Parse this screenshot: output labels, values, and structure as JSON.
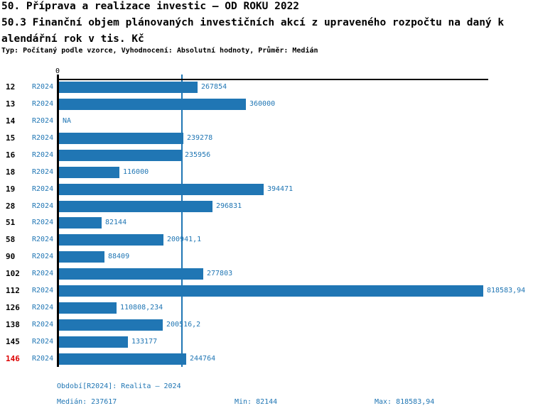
{
  "header": {
    "title": "50. Příprava a realizace investic – OD ROKU 2022",
    "subtitle_line1": "50.3 Finanční objem plánovaných investičních akcí z upraveného rozpočtu na daný k",
    "subtitle_line2": "alendářní rok v tis. Kč",
    "meta": "Typ: Počítaný podle vzorce, Vyhodnocení: Absolutní hodnoty, Průměr: Medián"
  },
  "chart_data": {
    "type": "bar",
    "orientation": "horizontal",
    "title": "50.3 Finanční objem plánovaných investičních akcí z upraveného rozpočtu na daný kalendářní rok v tis. Kč",
    "axis_origin_label": "0",
    "series_label": "R2024",
    "xlim": [
      0,
      818583.94
    ],
    "grid": false,
    "median_value": 237617,
    "max_value": 818583.94,
    "min_value": 82144,
    "categories": [
      "12",
      "13",
      "14",
      "15",
      "16",
      "18",
      "19",
      "28",
      "51",
      "58",
      "90",
      "102",
      "112",
      "126",
      "138",
      "145",
      "146"
    ],
    "rows": [
      {
        "id": "12",
        "value": 267854,
        "label": "267854",
        "highlight": false
      },
      {
        "id": "13",
        "value": 360000,
        "label": "360000",
        "highlight": false
      },
      {
        "id": "14",
        "value": null,
        "label": "NA",
        "highlight": false
      },
      {
        "id": "15",
        "value": 239278,
        "label": "239278",
        "highlight": false
      },
      {
        "id": "16",
        "value": 235956,
        "label": "235956",
        "highlight": false
      },
      {
        "id": "18",
        "value": 116000,
        "label": "116000",
        "highlight": false
      },
      {
        "id": "19",
        "value": 394471,
        "label": "394471",
        "highlight": false
      },
      {
        "id": "28",
        "value": 296831,
        "label": "296831",
        "highlight": false
      },
      {
        "id": "51",
        "value": 82144,
        "label": "82144",
        "highlight": false
      },
      {
        "id": "58",
        "value": 200941.1,
        "label": "200941,1",
        "highlight": false
      },
      {
        "id": "90",
        "value": 88409,
        "label": "88409",
        "highlight": false
      },
      {
        "id": "102",
        "value": 277803,
        "label": "277803",
        "highlight": false
      },
      {
        "id": "112",
        "value": 818583.94,
        "label": "818583,94",
        "highlight": false
      },
      {
        "id": "126",
        "value": 110808.234,
        "label": "110808,234",
        "highlight": false
      },
      {
        "id": "138",
        "value": 200516.2,
        "label": "200516,2",
        "highlight": false
      },
      {
        "id": "145",
        "value": 133177,
        "label": "133177",
        "highlight": false
      },
      {
        "id": "146",
        "value": 244764,
        "label": "244764",
        "highlight": true
      }
    ],
    "colors": {
      "bar": "#2076b4",
      "label_blue": "#2076b4",
      "median_line": "#2076b4",
      "highlight_red": "#dd0000",
      "axis_black": "#000000"
    }
  },
  "footer": {
    "period": "Období[R2024]: Realita – 2024",
    "median": "Medián: 237617",
    "min": "Min: 82144",
    "max": "Max: 818583,94"
  }
}
